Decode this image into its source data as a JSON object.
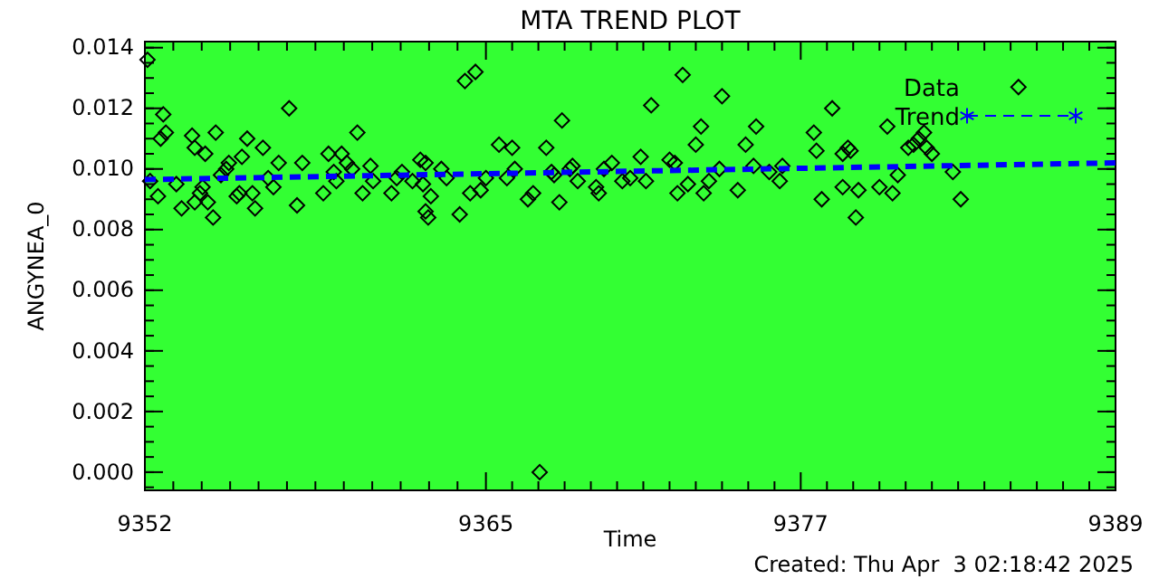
{
  "chart_data": {
    "type": "scatter",
    "title": "MTA TREND PLOT",
    "xlabel": "Time",
    "ylabel": "ANGYNEA_0",
    "annotations": [
      "Created: Thu Apr  3 02:18:42 2025"
    ],
    "xlim": [
      9352,
      9389
    ],
    "xticks": [
      9352,
      9365,
      9377,
      9389
    ],
    "ylim": [
      -0.0006,
      0.0142
    ],
    "yticks": [
      {
        "value": 0,
        "label": "0.000"
      },
      {
        "value": 0.002,
        "label": "0.002"
      },
      {
        "value": 0.004,
        "label": "0.004"
      },
      {
        "value": 0.006,
        "label": "0.006"
      },
      {
        "value": 0.008,
        "label": "0.008"
      },
      {
        "value": 0.01,
        "label": "0.010"
      },
      {
        "value": 0.012,
        "label": "0.012"
      },
      {
        "value": 0.014,
        "label": "0.014"
      }
    ],
    "grid": false,
    "legend": "top right",
    "series": [
      {
        "name": "Data",
        "color": "#000000",
        "marker": "diamond",
        "x": [
          9352.1,
          9352.2,
          9352.5,
          9352.6,
          9352.7,
          9352.8,
          9353.2,
          9353.4,
          9353.8,
          9353.9,
          9353.9,
          9354.1,
          9354.2,
          9354.3,
          9354.4,
          9354.6,
          9354.7,
          9354.9,
          9355.1,
          9355.2,
          9355.5,
          9355.6,
          9355.7,
          9355.9,
          9356.1,
          9356.2,
          9356.5,
          9356.7,
          9356.9,
          9357.1,
          9357.5,
          9357.8,
          9358.0,
          9358.8,
          9359.0,
          9359.2,
          9359.3,
          9359.5,
          9359.7,
          9359.9,
          9360.1,
          9360.3,
          9360.6,
          9360.7,
          9361.4,
          9361.6,
          9361.8,
          9362.2,
          9362.5,
          9362.6,
          9362.7,
          9362.7,
          9362.8,
          9362.9,
          9363.3,
          9363.5,
          9364.0,
          9364.2,
          9364.4,
          9364.6,
          9364.8,
          9365.0,
          9365.5,
          9365.8,
          9366.0,
          9366.1,
          9366.6,
          9366.8,
          9367.05,
          9367.3,
          9367.5,
          9367.6,
          9367.8,
          9367.9,
          9368.2,
          9368.3,
          9368.5,
          9369.2,
          9369.3,
          9369.5,
          9369.8,
          9370.2,
          9370.5,
          9370.9,
          9371.1,
          9371.3,
          9372.0,
          9372.2,
          9372.3,
          9372.5,
          9372.7,
          9373.0,
          9373.2,
          9373.3,
          9373.5,
          9373.9,
          9374.0,
          9374.6,
          9374.9,
          9375.2,
          9375.3,
          9375.8,
          9376.2,
          9376.3,
          9377.5,
          9377.6,
          9377.8,
          9378.2,
          9378.6,
          9378.6,
          9378.8,
          9378.9,
          9379.1,
          9379.2,
          9380.0,
          9380.3,
          9380.5,
          9380.7,
          9381.1,
          9381.3,
          9381.5,
          9381.7,
          9381.8,
          9382.0,
          9382.8,
          9383.1,
          9385.3
        ],
        "values": [
          0.0136,
          0.0096,
          0.0091,
          0.011,
          0.0118,
          0.0112,
          0.0095,
          0.0087,
          0.0111,
          0.0107,
          0.0089,
          0.0092,
          0.0094,
          0.0105,
          0.0089,
          0.0084,
          0.0112,
          0.0098,
          0.01,
          0.0102,
          0.0091,
          0.0092,
          0.0104,
          0.011,
          0.0092,
          0.0087,
          0.0107,
          0.0097,
          0.0094,
          0.0102,
          0.012,
          0.0088,
          0.0102,
          0.0092,
          0.0105,
          0.0099,
          0.0096,
          0.0105,
          0.0102,
          0.01,
          0.0112,
          0.0092,
          0.0101,
          0.0096,
          0.0092,
          0.0097,
          0.0099,
          0.0096,
          0.0103,
          0.0095,
          0.0102,
          0.0086,
          0.0084,
          0.0091,
          0.01,
          0.0097,
          0.0085,
          0.0129,
          0.0092,
          0.0132,
          0.0093,
          0.0097,
          0.0108,
          0.0097,
          0.0107,
          0.01,
          0.009,
          0.0092,
          0.0,
          0.0107,
          0.0099,
          0.0098,
          0.0089,
          0.0116,
          0.01,
          0.0101,
          0.0096,
          0.0094,
          0.0092,
          0.01,
          0.0102,
          0.0096,
          0.0097,
          0.0104,
          0.0096,
          0.0121,
          0.0103,
          0.0102,
          0.0092,
          0.0131,
          0.0095,
          0.0108,
          0.0114,
          0.0092,
          0.0096,
          0.01,
          0.0124,
          0.0093,
          0.0108,
          0.0101,
          0.0114,
          0.0099,
          0.0096,
          0.0101,
          0.0112,
          0.0106,
          0.009,
          0.012,
          0.0105,
          0.0094,
          0.0107,
          0.0106,
          0.0084,
          0.0093,
          0.0094,
          0.0114,
          0.0092,
          0.0098,
          0.0107,
          0.0108,
          0.011,
          0.0112,
          0.0107,
          0.0105,
          0.0099,
          0.009,
          0.0127
        ]
      },
      {
        "name": "Trend",
        "type": "line",
        "color": "#0000ff",
        "line_style": "dashed",
        "x": [
          9352,
          9389
        ],
        "values": [
          0.00965,
          0.0102
        ]
      }
    ]
  }
}
